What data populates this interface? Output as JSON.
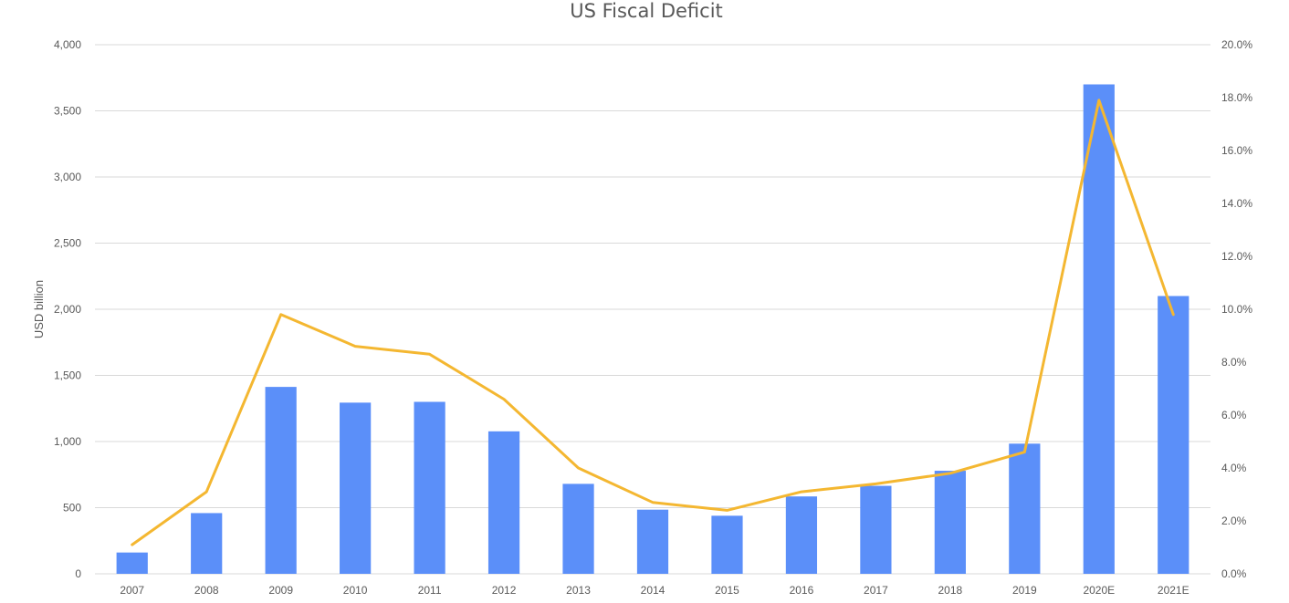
{
  "chart_data": {
    "type": "bar",
    "title": "US Fiscal Deficit",
    "ylabel": "USD billion",
    "y2label": "",
    "categories": [
      "2007",
      "2008",
      "2009",
      "2010",
      "2011",
      "2012",
      "2013",
      "2014",
      "2015",
      "2016",
      "2017",
      "2018",
      "2019",
      "2020E",
      "2021E"
    ],
    "series": [
      {
        "type": "bar",
        "axis": "left",
        "values": [
          161,
          459,
          1413,
          1294,
          1300,
          1077,
          680,
          485,
          439,
          585,
          665,
          779,
          984,
          3700,
          2100
        ]
      },
      {
        "type": "line",
        "axis": "right",
        "values": [
          1.1,
          3.1,
          9.8,
          8.6,
          8.3,
          6.6,
          4.0,
          2.7,
          2.4,
          3.1,
          3.4,
          3.8,
          4.6,
          17.9,
          9.8
        ]
      }
    ],
    "ylim": [
      0,
      4000
    ],
    "y_ticks": [
      "0",
      "500",
      "1,000",
      "1,500",
      "2,000",
      "2,500",
      "3,000",
      "3,500",
      "4,000"
    ],
    "y2lim": [
      0,
      20
    ],
    "y2_ticks": [
      "0.0%",
      "2.0%",
      "4.0%",
      "6.0%",
      "8.0%",
      "10.0%",
      "12.0%",
      "14.0%",
      "16.0%",
      "18.0%",
      "20.0%"
    ],
    "grid": true,
    "legend": "none",
    "colors": {
      "bar": "#5b8ff9",
      "line": "#f4b731",
      "grid": "#d9d9d9",
      "text": "#595959"
    }
  }
}
